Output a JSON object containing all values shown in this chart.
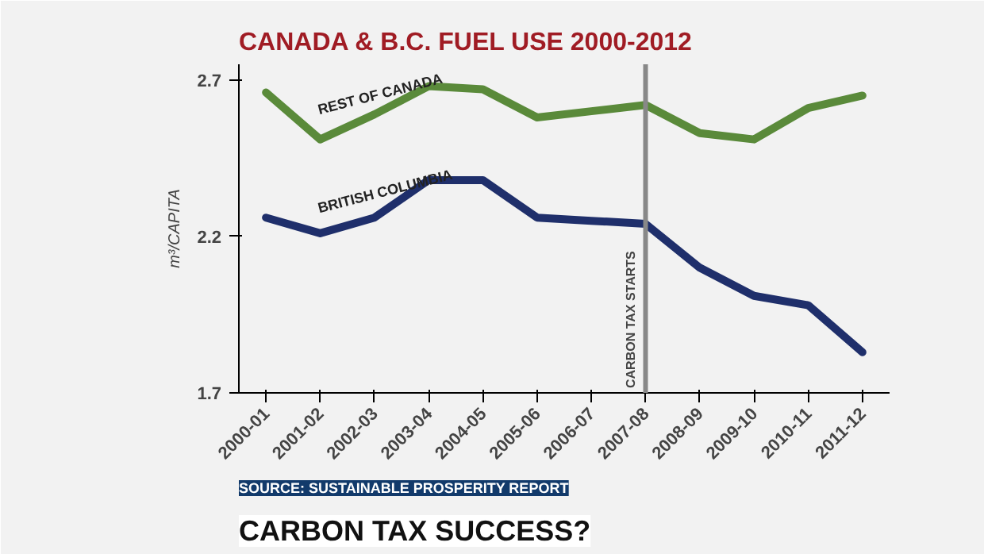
{
  "chart_data": {
    "type": "line",
    "title": "CANADA & B.C. FUEL USE 2000-2012",
    "ylabel": "m³/CAPITA",
    "categories": [
      "2000-01",
      "2001-02",
      "2002-03",
      "2003-04",
      "2004-05",
      "2005-06",
      "2006-07",
      "2007-08",
      "2008-09",
      "2009-10",
      "2010-11",
      "2011-12"
    ],
    "series": [
      {
        "name": "REST OF CANADA",
        "color": "#5a8a3a",
        "values": [
          2.66,
          2.51,
          2.59,
          2.68,
          2.67,
          2.58,
          2.6,
          2.62,
          2.53,
          2.51,
          2.61,
          2.65
        ]
      },
      {
        "name": "BRITISH COLUMBIA",
        "color": "#1f2f6b",
        "values": [
          2.26,
          2.21,
          2.26,
          2.38,
          2.38,
          2.26,
          2.25,
          2.24,
          2.1,
          2.01,
          1.98,
          1.83
        ]
      }
    ],
    "ylim": [
      1.7,
      2.75
    ],
    "yticks": [
      1.7,
      2.2,
      2.7
    ],
    "grid": false,
    "legend": false,
    "marker": "none",
    "line_style": "solid",
    "ref_lines": [
      {
        "axis": "x",
        "value": "2007-08",
        "label": "CARBON TAX STARTS",
        "color": "#888888"
      }
    ],
    "annotations": [
      "SOURCE: SUSTAINABLE PROSPERITY REPORT",
      "CARBON TAX SUCCESS?"
    ]
  }
}
